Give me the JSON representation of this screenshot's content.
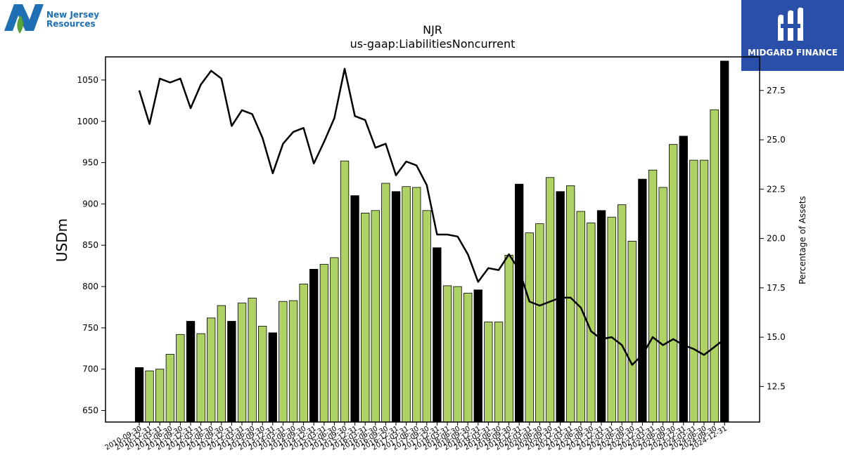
{
  "logos": {
    "left_line1": "New Jersey",
    "left_line2": "Resources",
    "right_name": "MIDGARD FINANCE",
    "left_brand_color": "#1f6fb5",
    "left_leaf_color": "#5aa33a",
    "right_bg_color": "#2a4fa8"
  },
  "chart_data": {
    "type": "bar",
    "title": "NJR",
    "subtitle": "us-gaap:LiabilitiesNoncurrent",
    "ylabel": "USDm",
    "y2label": "Percentage of Assets",
    "ylim": [
      636,
      1078
    ],
    "y2lim": [
      10.7,
      29.2
    ],
    "yticks": [
      650,
      700,
      750,
      800,
      850,
      900,
      950,
      1000,
      1050
    ],
    "y2ticks": [
      "12.5",
      "15.0",
      "17.5",
      "20.0",
      "22.5",
      "25.0",
      "27.5"
    ],
    "grid": false,
    "categories": [
      "2010-09-30",
      "2010-12-31",
      "2011-03-31",
      "2011-06-30",
      "2011-09-30",
      "2011-12-31",
      "2012-03-31",
      "2012-06-30",
      "2012-09-30",
      "2012-12-31",
      "2013-03-31",
      "2013-06-30",
      "2013-09-30",
      "2013-12-31",
      "2014-03-31",
      "2014-06-30",
      "2014-09-30",
      "2014-12-31",
      "2015-03-31",
      "2015-06-30",
      "2015-09-30",
      "2015-12-31",
      "2016-03-31",
      "2016-06-30",
      "2016-09-30",
      "2016-12-31",
      "2017-03-31",
      "2017-06-30",
      "2017-09-30",
      "2017-12-31",
      "2018-03-31",
      "2018-06-30",
      "2018-09-30",
      "2018-12-31",
      "2019-03-31",
      "2019-06-30",
      "2019-09-30",
      "2019-12-31",
      "2020-03-31",
      "2020-06-30",
      "2020-09-30",
      "2020-12-31",
      "2021-03-31",
      "2021-06-30",
      "2021-09-30",
      "2021-12-31",
      "2022-03-31",
      "2022-06-30",
      "2022-09-30",
      "2022-12-31",
      "2023-03-31",
      "2023-06-30",
      "2023-09-30",
      "2023-12-31",
      "2024-03-31",
      "2024-06-30",
      "2024-09-30",
      "2024-12-31"
    ],
    "series": [
      {
        "type": "bar",
        "values": [
          702,
          698,
          700,
          718,
          742,
          758,
          743,
          762,
          777,
          758,
          780,
          786,
          752,
          744,
          782,
          783,
          803,
          821,
          827,
          835,
          952,
          910,
          889,
          892,
          925,
          915,
          921,
          920,
          892,
          847,
          801,
          800,
          792,
          796,
          757,
          757,
          838,
          924,
          865,
          876,
          932,
          915,
          922,
          891,
          877,
          892,
          884,
          899,
          855,
          930,
          941,
          920,
          972,
          982,
          953,
          953,
          1014,
          1073
        ],
        "fiscal_year_end": [
          true,
          false,
          false,
          false,
          false,
          true,
          false,
          false,
          false,
          true,
          false,
          false,
          false,
          true,
          false,
          false,
          false,
          true,
          false,
          false,
          false,
          true,
          false,
          false,
          false,
          true,
          false,
          false,
          false,
          true,
          false,
          false,
          false,
          true,
          false,
          false,
          false,
          true,
          false,
          false,
          false,
          true,
          false,
          false,
          false,
          true,
          false,
          false,
          false,
          true,
          false,
          false,
          false,
          true,
          false,
          false,
          false,
          true
        ],
        "colors": {
          "quarter": "#aed264",
          "fiscal_year_end": "#000000"
        }
      },
      {
        "type": "line",
        "axis": "right",
        "color": "#000000",
        "x_start": 0,
        "values": [
          27.5,
          25.8,
          28.1,
          27.9,
          28.1,
          26.6,
          27.8,
          28.5,
          28.1,
          25.7,
          26.5,
          26.3,
          25.1,
          23.3,
          24.8,
          25.4,
          25.6,
          23.8,
          24.9,
          26.1,
          28.6,
          26.2,
          26.0,
          24.6,
          24.8,
          23.2,
          23.9,
          23.7,
          22.7,
          20.2,
          20.2,
          20.1,
          19.2,
          17.8,
          18.5,
          18.4,
          19.2,
          18.4,
          16.8,
          16.6,
          16.8,
          17.0,
          17.0,
          16.5,
          15.3,
          14.9,
          15.0,
          14.6,
          13.6,
          14.1,
          15.0,
          14.6,
          14.9,
          14.6,
          14.4,
          14.1,
          14.5,
          14.9
        ]
      }
    ]
  }
}
